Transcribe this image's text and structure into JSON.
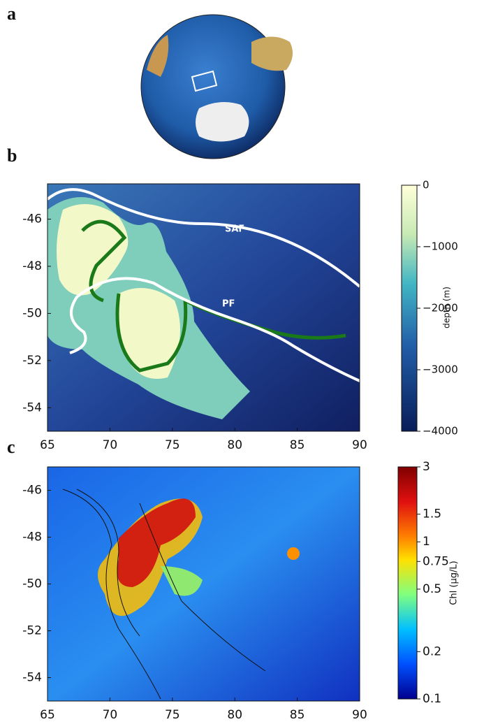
{
  "panels": {
    "a": {
      "label": "a"
    },
    "b": {
      "label": "b",
      "xlim": [
        65,
        90
      ],
      "ylim": [
        -55,
        -44.5
      ],
      "xticks": [
        65,
        70,
        75,
        80,
        85,
        90
      ],
      "yticks": [
        -46,
        -48,
        -50,
        -52,
        -54
      ],
      "fronts": [
        "SAF",
        "PF"
      ],
      "colorbar": {
        "label": "depth (m)",
        "lim": [
          -4000,
          0
        ],
        "ticks": [
          0,
          {
            "value": -1000,
            "label": "−1000"
          },
          {
            "value": -2000,
            "label": "−2000"
          },
          {
            "value": -3000,
            "label": "−3000"
          },
          {
            "value": -4000,
            "label": "−4000"
          }
        ]
      }
    },
    "c": {
      "label": "c",
      "xlim": [
        65,
        90
      ],
      "ylim": [
        -55,
        -45
      ],
      "xticks": [
        65,
        70,
        75,
        80,
        85,
        90
      ],
      "yticks": [
        -46,
        -48,
        -50,
        -52,
        -54
      ],
      "colorbar": {
        "label": "Chl  (μg/L)",
        "lim": [
          0.1,
          3
        ],
        "log": true,
        "ticks": [
          3,
          1.5,
          1,
          0.75,
          0.5,
          0.2,
          0.1
        ]
      }
    }
  }
}
